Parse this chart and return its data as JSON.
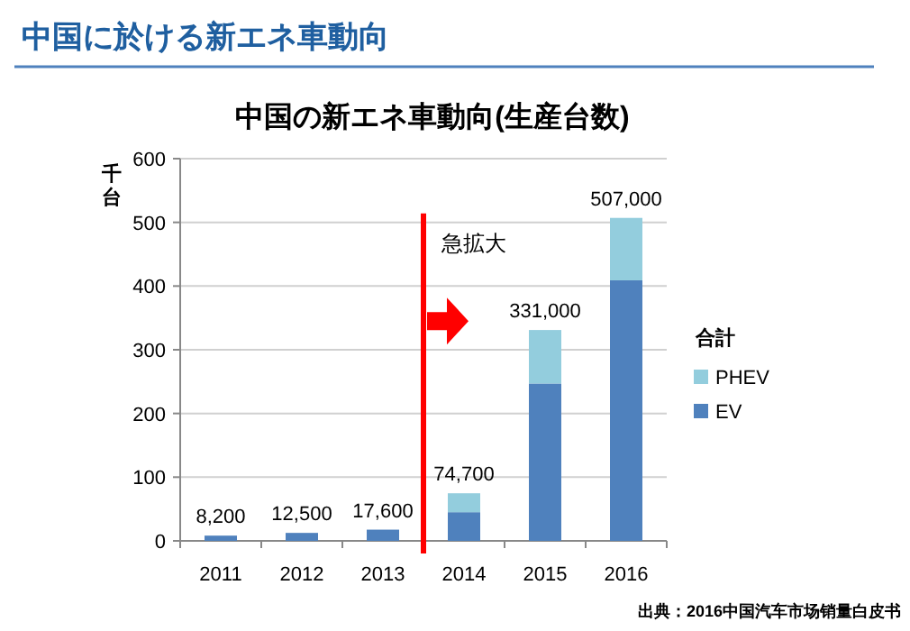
{
  "chart_data": {
    "type": "bar",
    "title": "中国に於ける新エネ車動向",
    "subtitle": "中国の新エネ車動向(生産台数)",
    "ylabel": "千台",
    "legend_title": "合計",
    "annotations": [
      "急拡大",
      "出典：2016中国汽车市场销量白皮书"
    ],
    "categories": [
      "2011",
      "2012",
      "2013",
      "2014",
      "2015",
      "2016"
    ],
    "series": [
      {
        "name": "EV",
        "color": "#4f81bd",
        "values": [
          8.2,
          12.5,
          17.6,
          45,
          247,
          409
        ]
      },
      {
        "name": "PHEV",
        "color": "#93cddd",
        "values": [
          null,
          null,
          null,
          29.7,
          84,
          98
        ]
      }
    ],
    "stacked": true,
    "totals": [
      "8,200",
      "12,500",
      "17,600",
      "74,700",
      "331,000",
      "507,000"
    ],
    "ylim": [
      0,
      600
    ],
    "yticks": [
      0,
      100,
      200,
      300,
      400,
      500,
      600
    ],
    "grid": "y",
    "legend": "right",
    "ref_lines": [
      {
        "axis": "x",
        "value": "2014",
        "color": "#ff0000"
      }
    ]
  }
}
